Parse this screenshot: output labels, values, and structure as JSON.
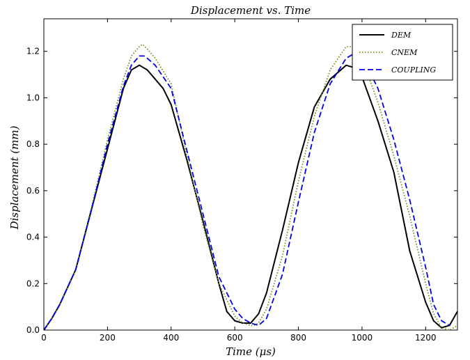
{
  "chart_data": {
    "type": "line",
    "title": "Displacement vs. Time",
    "xlabel": "Time (μs)",
    "ylabel": "Displacement (mm)",
    "xlim": [
      0,
      1300
    ],
    "ylim": [
      0,
      1.34
    ],
    "xticks": [
      0,
      200,
      400,
      600,
      800,
      1000,
      1200
    ],
    "yticks": [
      0.0,
      0.2,
      0.4,
      0.6,
      0.8,
      1.0,
      1.2
    ],
    "xtick_labels": [
      "0",
      "200",
      "400",
      "600",
      "800",
      "1000",
      "1200"
    ],
    "ytick_labels": [
      "0.0",
      "0.2",
      "0.4",
      "0.6",
      "0.8",
      "1.0",
      "1.2"
    ],
    "grid": false,
    "legend_position": "top-right",
    "series": [
      {
        "name": "DEM",
        "color": "#000000",
        "style": "solid",
        "x": [
          0,
          25,
          50,
          100,
          150,
          200,
          250,
          275,
          300,
          325,
          350,
          375,
          400,
          450,
          500,
          550,
          575,
          600,
          625,
          650,
          675,
          700,
          750,
          800,
          850,
          900,
          950,
          975,
          1000,
          1050,
          1100,
          1150,
          1200,
          1225,
          1250,
          1275,
          1300
        ],
        "y": [
          0.0,
          0.05,
          0.11,
          0.26,
          0.52,
          0.78,
          1.04,
          1.12,
          1.14,
          1.12,
          1.08,
          1.04,
          0.97,
          0.73,
          0.47,
          0.2,
          0.08,
          0.04,
          0.03,
          0.03,
          0.07,
          0.16,
          0.43,
          0.72,
          0.96,
          1.08,
          1.14,
          1.13,
          1.09,
          0.9,
          0.68,
          0.34,
          0.12,
          0.04,
          0.01,
          0.02,
          0.08
        ]
      },
      {
        "name": "CNEM",
        "color": "#6b8e23",
        "style": "dotted",
        "x": [
          0,
          25,
          50,
          100,
          150,
          200,
          250,
          275,
          300,
          310,
          325,
          350,
          400,
          450,
          500,
          550,
          600,
          625,
          650,
          660,
          675,
          700,
          750,
          800,
          850,
          900,
          950,
          975,
          1000,
          1050,
          1100,
          1150,
          1200,
          1225,
          1250,
          1275,
          1300
        ],
        "y": [
          0.0,
          0.05,
          0.11,
          0.26,
          0.53,
          0.82,
          1.08,
          1.18,
          1.22,
          1.23,
          1.21,
          1.17,
          1.06,
          0.75,
          0.45,
          0.2,
          0.06,
          0.03,
          0.02,
          0.02,
          0.03,
          0.09,
          0.32,
          0.64,
          0.92,
          1.12,
          1.22,
          1.22,
          1.17,
          0.98,
          0.75,
          0.49,
          0.2,
          0.07,
          0.01,
          0.0,
          0.02
        ]
      },
      {
        "name": "COUPLING",
        "color": "#0000ee",
        "style": "dashed",
        "x": [
          0,
          25,
          50,
          100,
          150,
          200,
          250,
          275,
          300,
          315,
          325,
          350,
          400,
          450,
          500,
          550,
          600,
          625,
          650,
          675,
          700,
          750,
          800,
          850,
          900,
          950,
          975,
          1000,
          1050,
          1100,
          1150,
          1200,
          1225,
          1250,
          1275
        ],
        "y": [
          0.0,
          0.05,
          0.11,
          0.26,
          0.52,
          0.8,
          1.05,
          1.14,
          1.18,
          1.18,
          1.17,
          1.14,
          1.04,
          0.77,
          0.5,
          0.23,
          0.09,
          0.05,
          0.03,
          0.02,
          0.05,
          0.24,
          0.55,
          0.85,
          1.06,
          1.17,
          1.19,
          1.18,
          1.04,
          0.82,
          0.56,
          0.27,
          0.11,
          0.04,
          0.02
        ]
      }
    ]
  }
}
